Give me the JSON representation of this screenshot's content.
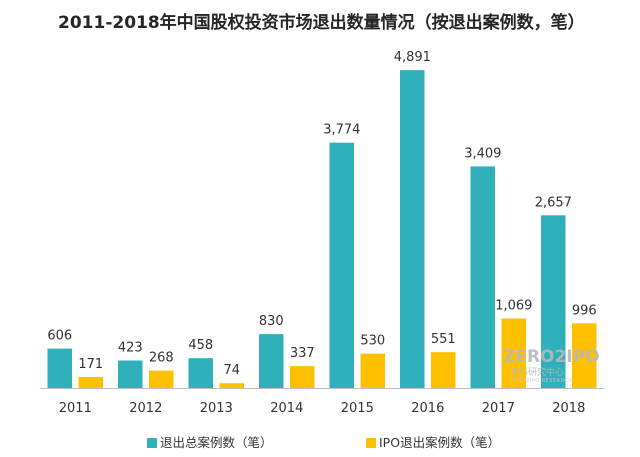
{
  "chart_data": {
    "type": "bar",
    "title": "2011-2018年中国股权投资市场退出数量情况（按退出案例数，笔）",
    "categories": [
      "2011",
      "2012",
      "2013",
      "2014",
      "2015",
      "2016",
      "2017",
      "2018"
    ],
    "series": [
      {
        "name": "退出总案例数（笔）",
        "values": [
          606,
          423,
          458,
          830,
          3774,
          4891,
          3409,
          2657
        ],
        "labels": [
          "606",
          "423",
          "458",
          "830",
          "3,774",
          "4,891",
          "3,409",
          "2,657"
        ],
        "color": "#2fb0bb"
      },
      {
        "name": "IPO退出案例数（笔）",
        "values": [
          171,
          268,
          74,
          337,
          530,
          551,
          1069,
          996
        ],
        "labels": [
          "171",
          "268",
          "74",
          "337",
          "530",
          "551",
          "1,069",
          "996"
        ],
        "color": "#ffc000"
      }
    ],
    "ylim": [
      0,
      5200
    ],
    "grid": false,
    "legend_position": "bottom",
    "xlabel": "",
    "ylabel": ""
  },
  "watermark": {
    "brand": "ZERO2IPO",
    "subtitle": "清科研究中心",
    "tagline": "ZERO2IPO RESEARCH"
  }
}
